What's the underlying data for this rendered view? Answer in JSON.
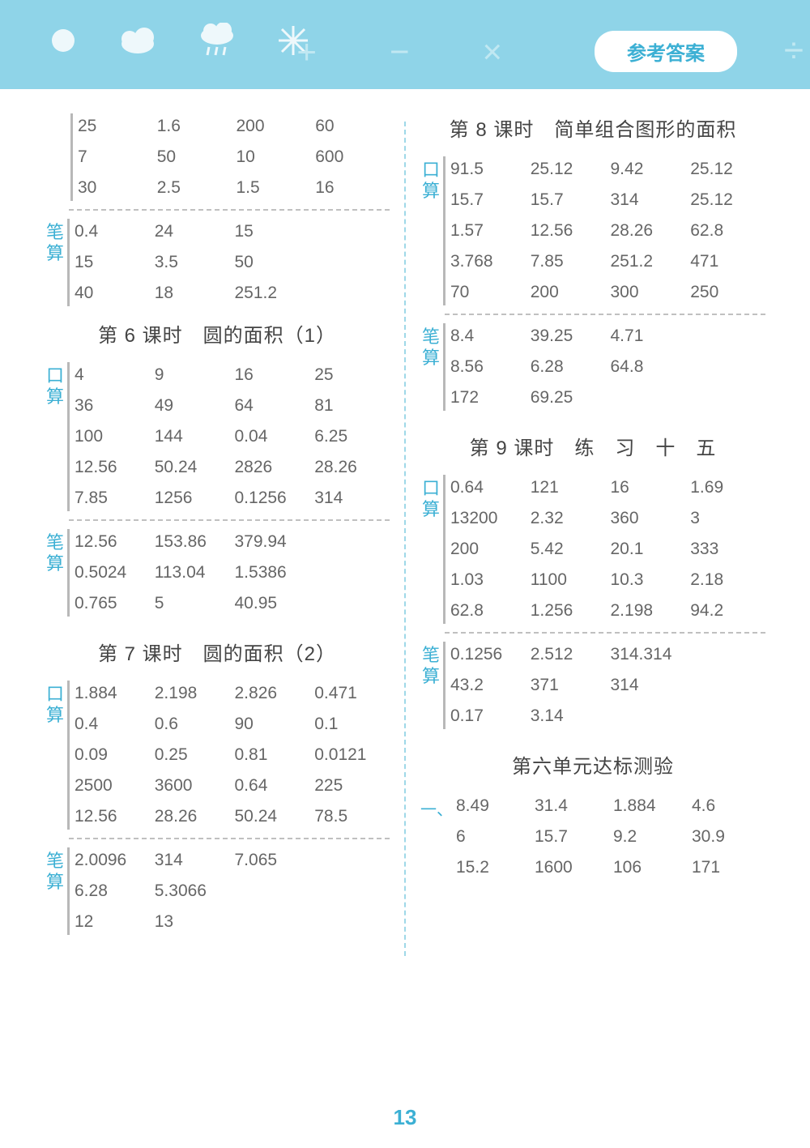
{
  "header": {
    "pill": "参考答案"
  },
  "pagenum": "13",
  "labels": {
    "kousuan": "口算",
    "bisuan": "笔算",
    "yi": "一、"
  },
  "colors": {
    "band": "#8fd4e8",
    "accent": "#3cb0d4",
    "text": "#666",
    "bar": "#b8b8b8",
    "dash": "#c0c0c0"
  },
  "left": {
    "top_plain": {
      "rows": [
        [
          "25",
          "1.6",
          "200",
          "60"
        ],
        [
          "7",
          "50",
          "10",
          "600"
        ],
        [
          "30",
          "2.5",
          "1.5",
          "16"
        ]
      ]
    },
    "top_bisuan": {
      "rows": [
        [
          "0.4",
          "24",
          "15",
          ""
        ],
        [
          "15",
          "3.5",
          "50",
          ""
        ],
        [
          "40",
          "18",
          "251.2",
          ""
        ]
      ]
    },
    "s6": {
      "title": "第 6 课时　圆的面积（1）",
      "kousuan": [
        [
          "4",
          "9",
          "16",
          "25"
        ],
        [
          "36",
          "49",
          "64",
          "81"
        ],
        [
          "100",
          "144",
          "0.04",
          "6.25"
        ],
        [
          "12.56",
          "50.24",
          "2826",
          "28.26"
        ],
        [
          "7.85",
          "1256",
          "0.1256",
          "314"
        ]
      ],
      "bisuan": [
        [
          "12.56",
          "153.86",
          "379.94",
          ""
        ],
        [
          "0.5024",
          "113.04",
          "1.5386",
          ""
        ],
        [
          "0.765",
          "5",
          "40.95",
          ""
        ]
      ]
    },
    "s7": {
      "title": "第 7 课时　圆的面积（2）",
      "kousuan": [
        [
          "1.884",
          "2.198",
          "2.826",
          "0.471"
        ],
        [
          "0.4",
          "0.6",
          "90",
          "0.1"
        ],
        [
          "0.09",
          "0.25",
          "0.81",
          "0.0121"
        ],
        [
          "2500",
          "3600",
          "0.64",
          "225"
        ],
        [
          "12.56",
          "28.26",
          "50.24",
          "78.5"
        ]
      ],
      "bisuan": [
        [
          "2.0096",
          "314",
          "7.065",
          ""
        ],
        [
          "6.28",
          "5.3066",
          "",
          ""
        ],
        [
          "12",
          "13",
          "",
          ""
        ]
      ]
    }
  },
  "right": {
    "s8": {
      "title": "第 8 课时　简单组合图形的面积",
      "kousuan": [
        [
          "91.5",
          "25.12",
          "9.42",
          "25.12"
        ],
        [
          "15.7",
          "15.7",
          "314",
          "25.12"
        ],
        [
          "1.57",
          "12.56",
          "28.26",
          "62.8"
        ],
        [
          "3.768",
          "7.85",
          "251.2",
          "471"
        ],
        [
          "70",
          "200",
          "300",
          "250"
        ]
      ],
      "bisuan": [
        [
          "8.4",
          "39.25",
          "4.71",
          ""
        ],
        [
          "8.56",
          "6.28",
          "64.8",
          ""
        ],
        [
          "172",
          "69.25",
          "",
          ""
        ]
      ]
    },
    "s9": {
      "title": "第 9 课时　练　习　十　五",
      "kousuan": [
        [
          "0.64",
          "121",
          "16",
          "1.69"
        ],
        [
          "13200",
          "2.32",
          "360",
          "3"
        ],
        [
          "200",
          "5.42",
          "20.1",
          "333"
        ],
        [
          "1.03",
          "1100",
          "10.3",
          "2.18"
        ],
        [
          "62.8",
          "1.256",
          "2.198",
          "94.2"
        ]
      ],
      "bisuan": [
        [
          "0.1256",
          "2.512",
          "314.314",
          ""
        ],
        [
          "43.2",
          "371",
          "314",
          ""
        ],
        [
          "0.17",
          "3.14",
          "",
          ""
        ]
      ]
    },
    "unit6": {
      "title": "第六单元达标测验",
      "rows": [
        [
          "8.49",
          "31.4",
          "1.884",
          "4.6"
        ],
        [
          "6",
          "15.7",
          "9.2",
          "30.9"
        ],
        [
          "15.2",
          "1600",
          "106",
          "171"
        ]
      ]
    }
  }
}
